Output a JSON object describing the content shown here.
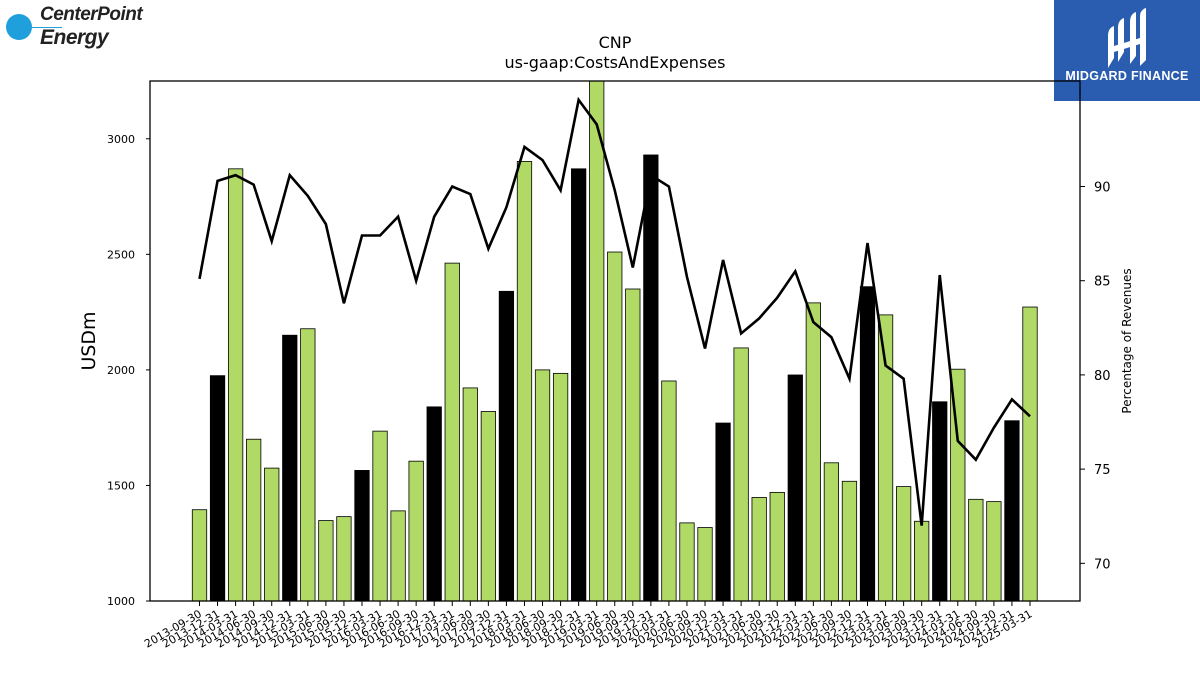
{
  "logo_left": {
    "line1": "CenterPoint",
    "line2": "Energy"
  },
  "logo_right": {
    "text": "MIDGARD FINANCE"
  },
  "colors": {
    "bar_default": "#b0d966",
    "bar_highlight": "#000000",
    "line": "#000000",
    "logo_blue": "#2a5db0",
    "centerpoint_blue": "#1fa0dc"
  },
  "chart_data": {
    "type": "bar",
    "title": "CNP",
    "subtitle": "us-gaap:CostsAndExpenses",
    "ylabel": "USDm",
    "y2label": "Percentage of Revenues",
    "ylim": [
      1000,
      3250
    ],
    "y2lim": [
      68,
      95.6
    ],
    "yticks": [
      1000,
      1500,
      2000,
      2500,
      3000
    ],
    "y2ticks": [
      70,
      75,
      80,
      85,
      90
    ],
    "categories": [
      "2013-09-30",
      "2013-12-31",
      "2014-03-31",
      "2014-06-30",
      "2014-09-30",
      "2014-12-31",
      "2015-03-31",
      "2015-06-30",
      "2015-09-30",
      "2015-12-31",
      "2016-03-31",
      "2016-06-30",
      "2016-09-30",
      "2016-12-31",
      "2017-03-31",
      "2017-06-30",
      "2017-09-30",
      "2017-12-31",
      "2018-03-31",
      "2018-06-30",
      "2018-09-30",
      "2018-12-31",
      "2019-03-31",
      "2019-06-30",
      "2019-09-30",
      "2019-12-31",
      "2020-03-31",
      "2020-06-30",
      "2020-09-30",
      "2020-12-31",
      "2021-03-31",
      "2021-06-30",
      "2021-09-30",
      "2021-12-31",
      "2022-03-31",
      "2022-06-30",
      "2022-09-30",
      "2022-12-31",
      "2023-03-31",
      "2023-06-30",
      "2023-09-30",
      "2023-12-31",
      "2024-03-31",
      "2024-06-30",
      "2024-09-30",
      "2024-12-31",
      "2025-03-31"
    ],
    "series": [
      {
        "type": "bar",
        "values": [
          1395,
          1975,
          2870,
          1700,
          1575,
          2150,
          2178,
          1348,
          1365,
          1565,
          1735,
          1390,
          1605,
          1840,
          2462,
          1922,
          1820,
          2340,
          2902,
          2000,
          1985,
          2870,
          3260,
          2510,
          2350,
          2930,
          1952,
          1338,
          1318,
          1770,
          2095,
          1448,
          1470,
          1978,
          2290,
          1598,
          1518,
          2360,
          2238,
          1495,
          1345,
          1862,
          2003,
          1440,
          1430,
          1780,
          2272
        ],
        "highlight": [
          false,
          true,
          false,
          false,
          false,
          true,
          false,
          false,
          false,
          true,
          false,
          false,
          false,
          true,
          false,
          false,
          false,
          true,
          false,
          false,
          false,
          true,
          false,
          false,
          false,
          true,
          false,
          false,
          false,
          true,
          false,
          false,
          false,
          true,
          false,
          false,
          false,
          true,
          false,
          false,
          false,
          true,
          false,
          false,
          false,
          true,
          false
        ]
      },
      {
        "type": "line",
        "axis": "right",
        "values": [
          85.1,
          90.3,
          90.6,
          90.1,
          87.1,
          90.6,
          89.5,
          88.0,
          83.8,
          87.4,
          87.4,
          88.4,
          85.0,
          88.4,
          90.0,
          89.6,
          86.7,
          88.9,
          92.1,
          91.4,
          89.8,
          94.6,
          93.3,
          89.8,
          85.7,
          90.6,
          90.0,
          85.2,
          81.4,
          86.1,
          82.2,
          83.0,
          84.1,
          85.5,
          82.8,
          82.0,
          79.8,
          87.0,
          80.5,
          79.8,
          72.0,
          85.3,
          76.5,
          75.5,
          77.2,
          78.7,
          77.8
        ]
      }
    ],
    "grid": false,
    "legend": "none"
  }
}
